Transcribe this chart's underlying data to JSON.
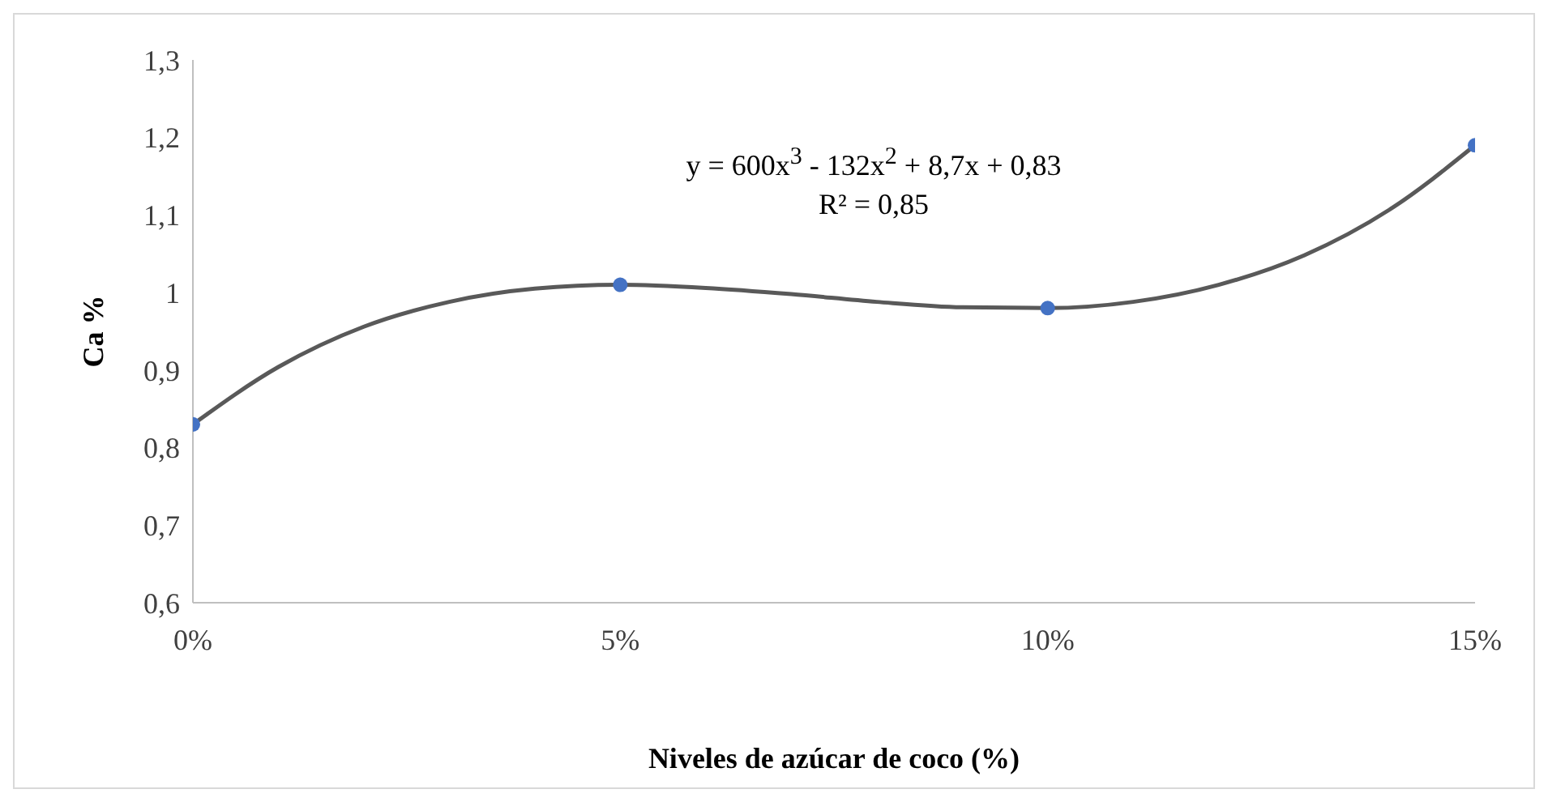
{
  "chart_data": {
    "type": "scatter",
    "xlabel": "Niveles de azúcar de coco (%)",
    "ylabel": "Ca %",
    "annotations": [
      "y = 600x$^{3}$ - 132x$^{2}$ + 8,7x + 0,83",
      "R² = 0,85"
    ],
    "x": [
      0,
      0.05,
      0.1,
      0.15
    ],
    "series": [
      {
        "color": "#4472c4",
        "values": [
          0.83,
          1.01,
          0.98,
          1.19
        ],
        "marker": "circle"
      },
      {
        "type": "line",
        "color": "#595959",
        "line_style": "solid",
        "marker": "none",
        "x": [
          0,
          0.01,
          0.02,
          0.03,
          0.04,
          0.05,
          0.06,
          0.07,
          0.08,
          0.09,
          0.1,
          0.11,
          0.12,
          0.13,
          0.14,
          0.15
        ],
        "values": [
          0.83,
          0.904,
          0.956,
          0.988,
          1.005,
          1.01,
          1.006,
          0.998,
          0.988,
          0.981,
          0.98,
          0.988,
          1.01,
          1.048,
          1.107,
          1.19
        ]
      }
    ],
    "xlim": [
      0,
      0.15
    ],
    "xticks": [
      {
        "value": 0,
        "label": "0%"
      },
      {
        "value": 0.05,
        "label": "5%"
      },
      {
        "value": 0.1,
        "label": "10%"
      },
      {
        "value": 0.15,
        "label": "15%"
      }
    ],
    "ylim": [
      0.6,
      1.3
    ],
    "yticks": [
      {
        "value": 0.6,
        "label": "0,6"
      },
      {
        "value": 0.7,
        "label": "0,7"
      },
      {
        "value": 0.8,
        "label": "0,8"
      },
      {
        "value": 0.9,
        "label": "0,9"
      },
      {
        "value": 1,
        "label": "1"
      },
      {
        "value": 1.1,
        "label": "1,1"
      },
      {
        "value": 1.2,
        "label": "1,2"
      },
      {
        "value": 1.3,
        "label": "1,3"
      }
    ],
    "grid": false
  }
}
